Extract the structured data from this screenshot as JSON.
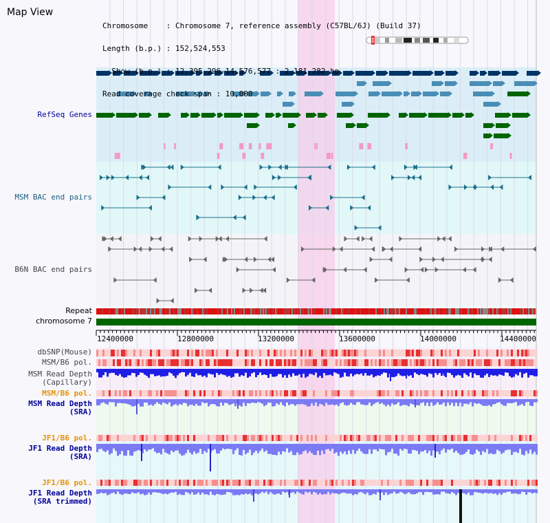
{
  "view_title": "Map View",
  "header": {
    "lines": [
      "Chromosome    : Chromosome 7, reference assembly (C57BL/6J) (Build 37)",
      "Length (b.p.) : 152,524,553",
      "  Show (b.p.) : 12,395,296-14,576,577 : 2,181,282 bp",
      "Read coverage check span : 10,000"
    ]
  },
  "tracks": {
    "refseq": "RefSeq Genes",
    "msm_bac": "MSM BAC end pairs",
    "b6n_bac": "B6N BAC end pairs",
    "repeat": "Repeat",
    "chromosome": "chromosome 7",
    "dbsnp": "dbSNP(Mouse)",
    "msm_pol": "MSM/B6 pol.",
    "msm_depth_cap_1": "MSM Read Depth",
    "msm_depth_cap_2": "(Capillary)",
    "msm_pol2": "MSM/B6 pol.",
    "msm_depth_sra_1": "MSM Read Depth",
    "msm_depth_sra_2": "(SRA)",
    "jf1_pol": "JF1/B6 pol.",
    "jf1_depth_sra_1": "JF1 Read Depth",
    "jf1_depth_sra_2": "(SRA)",
    "jf1_pol2": "JF1/B6 pol.",
    "jf1_depth_trim_1": "JF1 Read Depth",
    "jf1_depth_trim_2": "(SRA trimmed)"
  },
  "axis": {
    "ticks": [
      "12400000",
      "12800000",
      "13200000",
      "13600000",
      "14000000",
      "14400000"
    ]
  },
  "colors": {
    "refseq_bg": "#dbeef8",
    "bac_bg": "#e2f8f8",
    "highlight": "#f7cdeb",
    "chromosome_bar": "#006400",
    "repeat": "#dd1111",
    "navy_gene": "#003366",
    "mid_gene": "#4a8db5",
    "green_gene": "#006400",
    "depth_blue": "#1e1ee6",
    "depth_soft": "#7a7af5"
  }
}
